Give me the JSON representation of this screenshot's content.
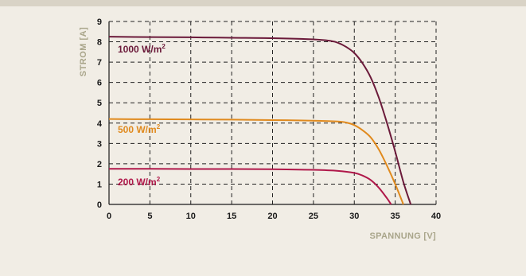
{
  "chart_data": {
    "type": "line",
    "title": "",
    "xlabel": "SPANNUNG [V]",
    "ylabel": "STROM [A]",
    "xlim": [
      0,
      40
    ],
    "ylim": [
      0,
      9
    ],
    "x_ticks": [
      "0",
      "5",
      "10",
      "15",
      "20",
      "25",
      "30",
      "35",
      "40"
    ],
    "y_ticks": [
      "0",
      "1",
      "2",
      "3",
      "4",
      "5",
      "6",
      "7",
      "8",
      "9"
    ],
    "grid": true,
    "series": [
      {
        "name": "1000 W/m²",
        "label_base": "1000 W/m",
        "label_sup": "2",
        "color": "#6b1a3a",
        "x": [
          0,
          5,
          10,
          15,
          20,
          25,
          27,
          28,
          29,
          30,
          31,
          32,
          33,
          34,
          35,
          36,
          36.9
        ],
        "y": [
          8.25,
          8.23,
          8.22,
          8.2,
          8.18,
          8.12,
          8.05,
          7.95,
          7.75,
          7.45,
          6.95,
          6.25,
          5.25,
          4.0,
          2.6,
          1.1,
          0
        ]
      },
      {
        "name": "500 W/m²",
        "label_base": "500 W/m",
        "label_sup": "2",
        "color": "#e08a1e",
        "x": [
          0,
          5,
          10,
          15,
          20,
          25,
          28,
          29,
          30,
          31,
          32,
          33,
          34,
          35,
          36
        ],
        "y": [
          4.2,
          4.19,
          4.18,
          4.17,
          4.15,
          4.12,
          4.08,
          4.03,
          3.9,
          3.65,
          3.3,
          2.7,
          1.9,
          1.0,
          0
        ]
      },
      {
        "name": "200 W/m²",
        "label_base": "200 W/m",
        "label_sup": "2",
        "color": "#b0184a",
        "x": [
          0,
          5,
          10,
          15,
          20,
          25,
          28,
          30,
          31,
          32,
          33,
          34,
          34.5
        ],
        "y": [
          1.75,
          1.75,
          1.74,
          1.74,
          1.73,
          1.7,
          1.65,
          1.55,
          1.42,
          1.2,
          0.82,
          0.3,
          0
        ]
      }
    ]
  }
}
